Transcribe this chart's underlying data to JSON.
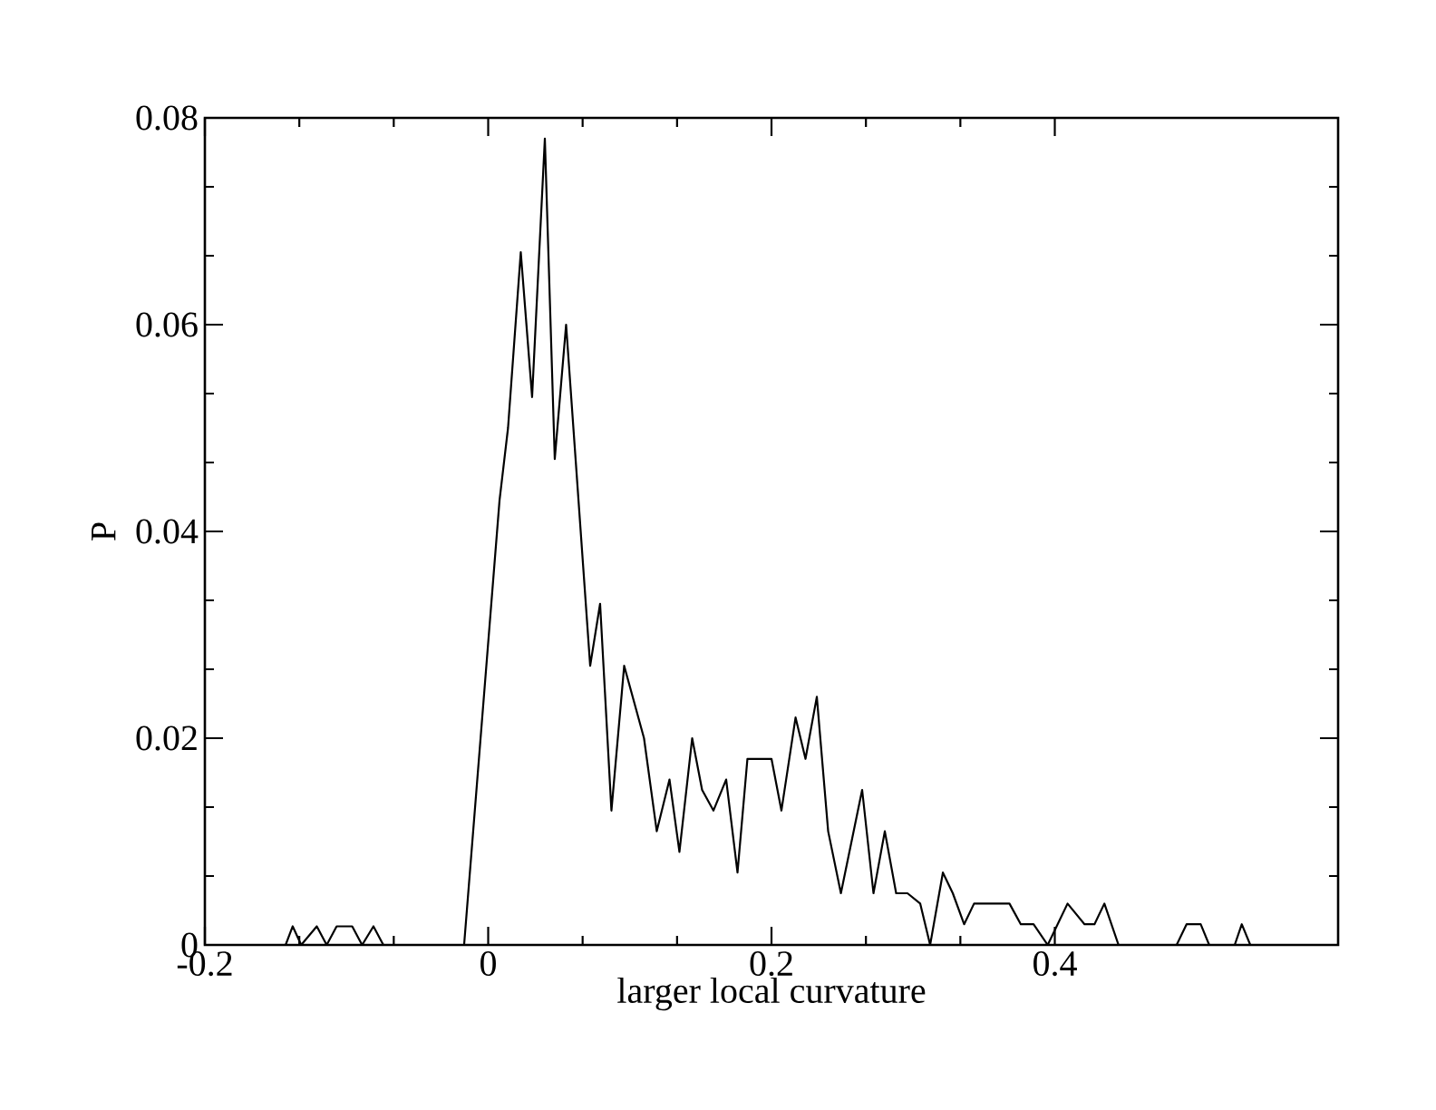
{
  "chart_data": {
    "type": "line",
    "xlabel": "larger local curvature",
    "ylabel": "P",
    "color": "#000000",
    "xlim": [
      -0.2,
      0.6
    ],
    "ylim": [
      0,
      0.08
    ],
    "xticks": [
      -0.2,
      0,
      0.2,
      0.4
    ],
    "yticks": [
      0,
      0.02,
      0.04,
      0.06,
      0.08
    ],
    "grid": false,
    "marker": "none",
    "line_style": "solid",
    "x": [
      -0.143,
      -0.138,
      -0.132,
      -0.121,
      -0.114,
      -0.107,
      -0.096,
      -0.089,
      -0.081,
      -0.074,
      -0.017,
      0.008,
      0.014,
      0.023,
      0.031,
      0.04,
      0.047,
      0.055,
      0.072,
      0.079,
      0.087,
      0.096,
      0.11,
      0.119,
      0.128,
      0.135,
      0.144,
      0.151,
      0.159,
      0.168,
      0.176,
      0.183,
      0.2,
      0.207,
      0.217,
      0.224,
      0.232,
      0.24,
      0.249,
      0.264,
      0.272,
      0.28,
      0.288,
      0.296,
      0.305,
      0.312,
      0.321,
      0.328,
      0.336,
      0.343,
      0.368,
      0.376,
      0.385,
      0.395,
      0.409,
      0.421,
      0.428,
      0.435,
      0.445,
      0.486,
      0.493,
      0.503,
      0.509,
      0.527,
      0.532,
      0.538
    ],
    "values": [
      0,
      0.0018,
      0,
      0.0018,
      0,
      0.0018,
      0.0018,
      0,
      0.0018,
      0,
      0,
      0.043,
      0.05,
      0.067,
      0.053,
      0.078,
      0.047,
      0.06,
      0.027,
      0.033,
      0.013,
      0.027,
      0.02,
      0.011,
      0.016,
      0.009,
      0.02,
      0.015,
      0.013,
      0.016,
      0.007,
      0.018,
      0.018,
      0.013,
      0.022,
      0.018,
      0.024,
      0.011,
      0.005,
      0.015,
      0.005,
      0.011,
      0.005,
      0.005,
      0.004,
      0,
      0.007,
      0.005,
      0.002,
      0.004,
      0.004,
      0.002,
      0.002,
      0,
      0.004,
      0.002,
      0.002,
      0.004,
      0,
      0,
      0.002,
      0.002,
      0,
      0,
      0.002,
      0
    ]
  }
}
